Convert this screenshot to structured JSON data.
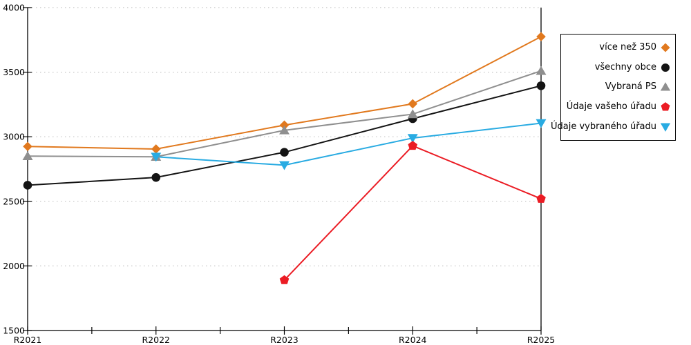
{
  "colors": {
    "background": "#FFFFFF",
    "axis": "#000000",
    "grid": "#C4C4C4",
    "tick_label": "#000000"
  },
  "chart_data": {
    "type": "line",
    "title": "",
    "xlabel": "",
    "ylabel": "",
    "categories": [
      "R2021",
      "R2022",
      "R2023",
      "R2024",
      "R2025"
    ],
    "series": [
      {
        "name": "více než 350",
        "marker": "diamond",
        "color": "#E1791E",
        "values": [
          2925,
          2905,
          3090,
          3255,
          3775
        ]
      },
      {
        "name": "všechny obce",
        "marker": "circle",
        "color": "#141414",
        "values": [
          2625,
          2685,
          2880,
          3140,
          3395
        ]
      },
      {
        "name": "Vybraná PS",
        "marker": "triangle-up",
        "color": "#8F8F8F",
        "values": [
          2850,
          2845,
          3050,
          3175,
          3510
        ]
      },
      {
        "name": "Údaje vašeho úřadu",
        "marker": "pentagon",
        "color": "#EB1C24",
        "values": [
          null,
          null,
          1890,
          2930,
          2520
        ]
      },
      {
        "name": "Údaje vybraného úřadu",
        "marker": "triangle-down",
        "color": "#29ABE2",
        "values": [
          null,
          2845,
          2780,
          2990,
          3105
        ]
      }
    ],
    "ylim": [
      1500,
      4000
    ],
    "yticks": [
      1500,
      2000,
      2500,
      3000,
      3500,
      4000
    ],
    "grid": "horizontal-dotted",
    "legend_position": "right-outside",
    "marker_draw_order": [
      0,
      1,
      2,
      4,
      3
    ]
  }
}
